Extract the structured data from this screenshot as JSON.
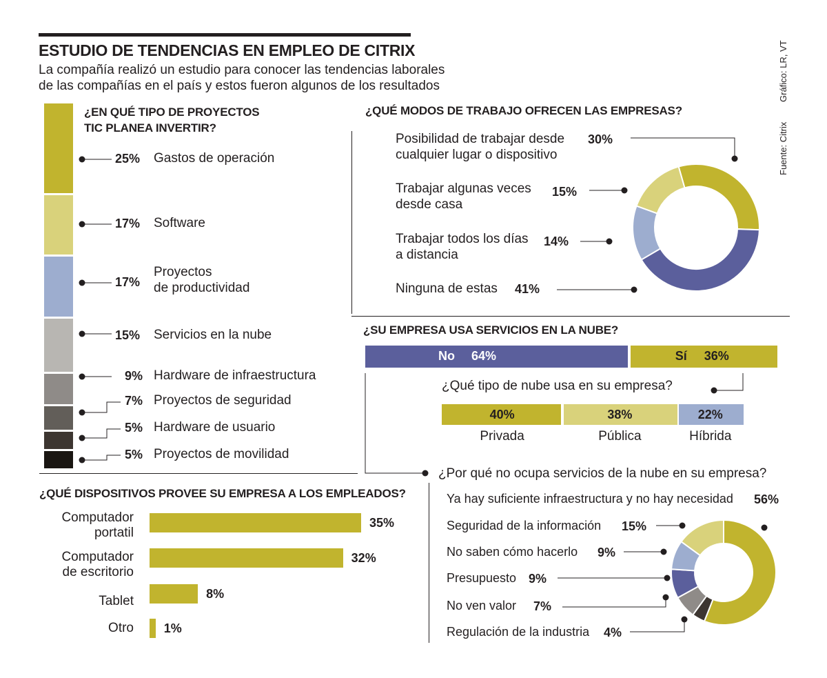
{
  "header": {
    "title": "ESTUDIO DE TENDENCIAS EN EMPLEO DE CITRIX",
    "subtitle_line1": "La compañía realizó un estudio para conocer las tendencias laborales",
    "subtitle_line2": "de las compañías en el país y estos fueron algunos de los resultados",
    "credit_graphic": "Gráfico: LR, VT",
    "credit_source": "Fuente: Citrix"
  },
  "colors": {
    "olive": "#c1b42e",
    "light_olive": "#d9d27b",
    "periwinkle": "#9dadcf",
    "blue": "#5b5f9c",
    "grey1": "#b8b6b2",
    "grey2": "#8f8b88",
    "grey3": "#625e59",
    "grey4": "#3d3631",
    "black": "#1a1612"
  },
  "chart_data": [
    {
      "type": "bar",
      "orientation": "stacked-vertical",
      "title_line1": "¿EN QUÉ TIPO DE PROYECTOS",
      "title_line2": "TIC PLANEA INVERTIR?",
      "categories": [
        "Gastos de operación",
        "Software",
        "Proyectos de productividad",
        "Servicios en la nube",
        "Hardware de infraestructura",
        "Proyectos de seguridad",
        "Hardware de usuario",
        "Proyectos de movilidad"
      ],
      "label_line1": [
        "Gastos de operación",
        "Software",
        "Proyectos",
        "Servicios en la nube",
        "Hardware de infraestructura",
        "Proyectos de seguridad",
        "Hardware de usuario",
        "Proyectos de movilidad"
      ],
      "label_line2": [
        "",
        "",
        "de productividad",
        "",
        "",
        "",
        "",
        ""
      ],
      "values": [
        25,
        17,
        17,
        15,
        9,
        7,
        5,
        5
      ],
      "value_labels": [
        "25%",
        "17%",
        "17%",
        "15%",
        "9%",
        "7%",
        "5%",
        "5%"
      ]
    },
    {
      "type": "pie",
      "style": "donut",
      "title": "¿QUÉ MODOS DE TRABAJO OFRECEN LAS EMPRESAS?",
      "categories": [
        "Posibilidad de trabajar desde cualquier lugar o dispositivo",
        "Trabajar algunas veces desde casa",
        "Trabajar todos los días a distancia",
        "Ninguna de estas"
      ],
      "label_line1": [
        "Posibilidad de trabajar desde",
        "Trabajar algunas veces",
        "Trabajar todos los días",
        "Ninguna de estas"
      ],
      "label_line2": [
        "cualquier lugar o dispositivo",
        "desde casa",
        "a distancia",
        ""
      ],
      "values": [
        30,
        15,
        14,
        41
      ],
      "value_labels": [
        "30%",
        "15%",
        "14%",
        "41%"
      ]
    },
    {
      "type": "bar",
      "orientation": "stacked-horizontal",
      "title": "¿SU EMPRESA USA SERVICIOS EN LA NUBE?",
      "categories": [
        "No",
        "Sí"
      ],
      "values": [
        64,
        36
      ],
      "value_labels": [
        "64%",
        "36%"
      ]
    },
    {
      "type": "bar",
      "orientation": "stacked-horizontal",
      "title": "¿Qué tipo de nube usa en su empresa?",
      "categories": [
        "Privada",
        "Pública",
        "Híbrida"
      ],
      "values": [
        40,
        38,
        22
      ],
      "value_labels": [
        "40%",
        "38%",
        "22%"
      ]
    },
    {
      "type": "pie",
      "style": "donut",
      "title": "¿Por qué no ocupa servicios de la nube en su empresa?",
      "categories": [
        "Ya hay suficiente infraestructura y no hay necesidad",
        "Seguridad de la información",
        "No saben cómo hacerlo",
        "Presupuesto",
        "No ven valor",
        "Regulación de la industria"
      ],
      "values": [
        56,
        15,
        9,
        9,
        7,
        4
      ],
      "value_labels": [
        "56%",
        "15%",
        "9%",
        "9%",
        "7%",
        "4%"
      ]
    },
    {
      "type": "bar",
      "orientation": "horizontal",
      "title": "¿QUÉ DISPOSITIVOS PROVEE SU EMPRESA A LOS EMPLEADOS?",
      "categories": [
        "Computador portatil",
        "Computador de escritorio",
        "Tablet",
        "Otro"
      ],
      "label_line1": [
        "Computador",
        "Computador",
        "Tablet",
        "Otro"
      ],
      "label_line2": [
        "portatil",
        "de escritorio",
        "",
        ""
      ],
      "values": [
        35,
        32,
        8,
        1
      ],
      "value_labels": [
        "35%",
        "32%",
        "8%",
        "1%"
      ],
      "xlim": [
        0,
        35
      ]
    }
  ]
}
